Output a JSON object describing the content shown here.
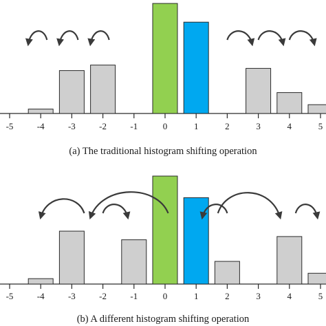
{
  "colors": {
    "gray": "#cfcfcf",
    "green": "#92d050",
    "blue": "#00a8f0",
    "arrow": "#3a3a3a"
  },
  "arrow_head": "arrowhead-icon",
  "chart_data": [
    {
      "type": "bar",
      "caption": "(a) The traditional histogram shifting operation",
      "categories": [
        "-5",
        "-4",
        "-3",
        "-2",
        "-1",
        "0",
        "1",
        "2",
        "3",
        "4",
        "5"
      ],
      "values": [
        0,
        0.04,
        0.39,
        0.44,
        0,
        1.0,
        0.83,
        0,
        0.41,
        0.19,
        0.08
      ],
      "bar_colors": [
        "gray",
        "gray",
        "gray",
        "gray",
        "gray",
        "green",
        "blue",
        "gray",
        "gray",
        "gray",
        "gray"
      ],
      "ylim": [
        0,
        1.0
      ],
      "arrows": [
        {
          "from": -3.8,
          "to": -4.4,
          "bend": "left"
        },
        {
          "from": -2.8,
          "to": -3.4,
          "bend": "left"
        },
        {
          "from": -1.8,
          "to": -2.4,
          "bend": "left"
        },
        {
          "from": 2.0,
          "to": 2.8,
          "bend": "right"
        },
        {
          "from": 3.0,
          "to": 3.8,
          "bend": "right"
        },
        {
          "from": 4.0,
          "to": 4.8,
          "bend": "right"
        }
      ]
    },
    {
      "type": "bar",
      "caption": "(b) A different histogram shifting operation",
      "categories": [
        "-5",
        "-4",
        "-3",
        "-2",
        "-1",
        "0",
        "1",
        "2",
        "3",
        "4",
        "5"
      ],
      "values": [
        0,
        0.05,
        0.49,
        0,
        0.41,
        1.0,
        0.8,
        0.21,
        0,
        0.44,
        0.1
      ],
      "bar_colors": [
        "gray",
        "gray",
        "gray",
        "gray",
        "gray",
        "green",
        "blue",
        "gray",
        "gray",
        "gray",
        "gray"
      ],
      "ylim": [
        0,
        1.0
      ],
      "arrows": [
        {
          "from": -2.6,
          "to": -4.0,
          "bend": "left"
        },
        {
          "from": 0.1,
          "to": -2.4,
          "bend": "left"
        },
        {
          "from": -2.0,
          "to": -1.2,
          "bend": "right"
        },
        {
          "from": 2.0,
          "to": 1.2,
          "bend": "left"
        },
        {
          "from": 1.7,
          "to": 3.7,
          "bend": "right"
        },
        {
          "from": 4.2,
          "to": 4.9,
          "bend": "right"
        }
      ]
    }
  ]
}
